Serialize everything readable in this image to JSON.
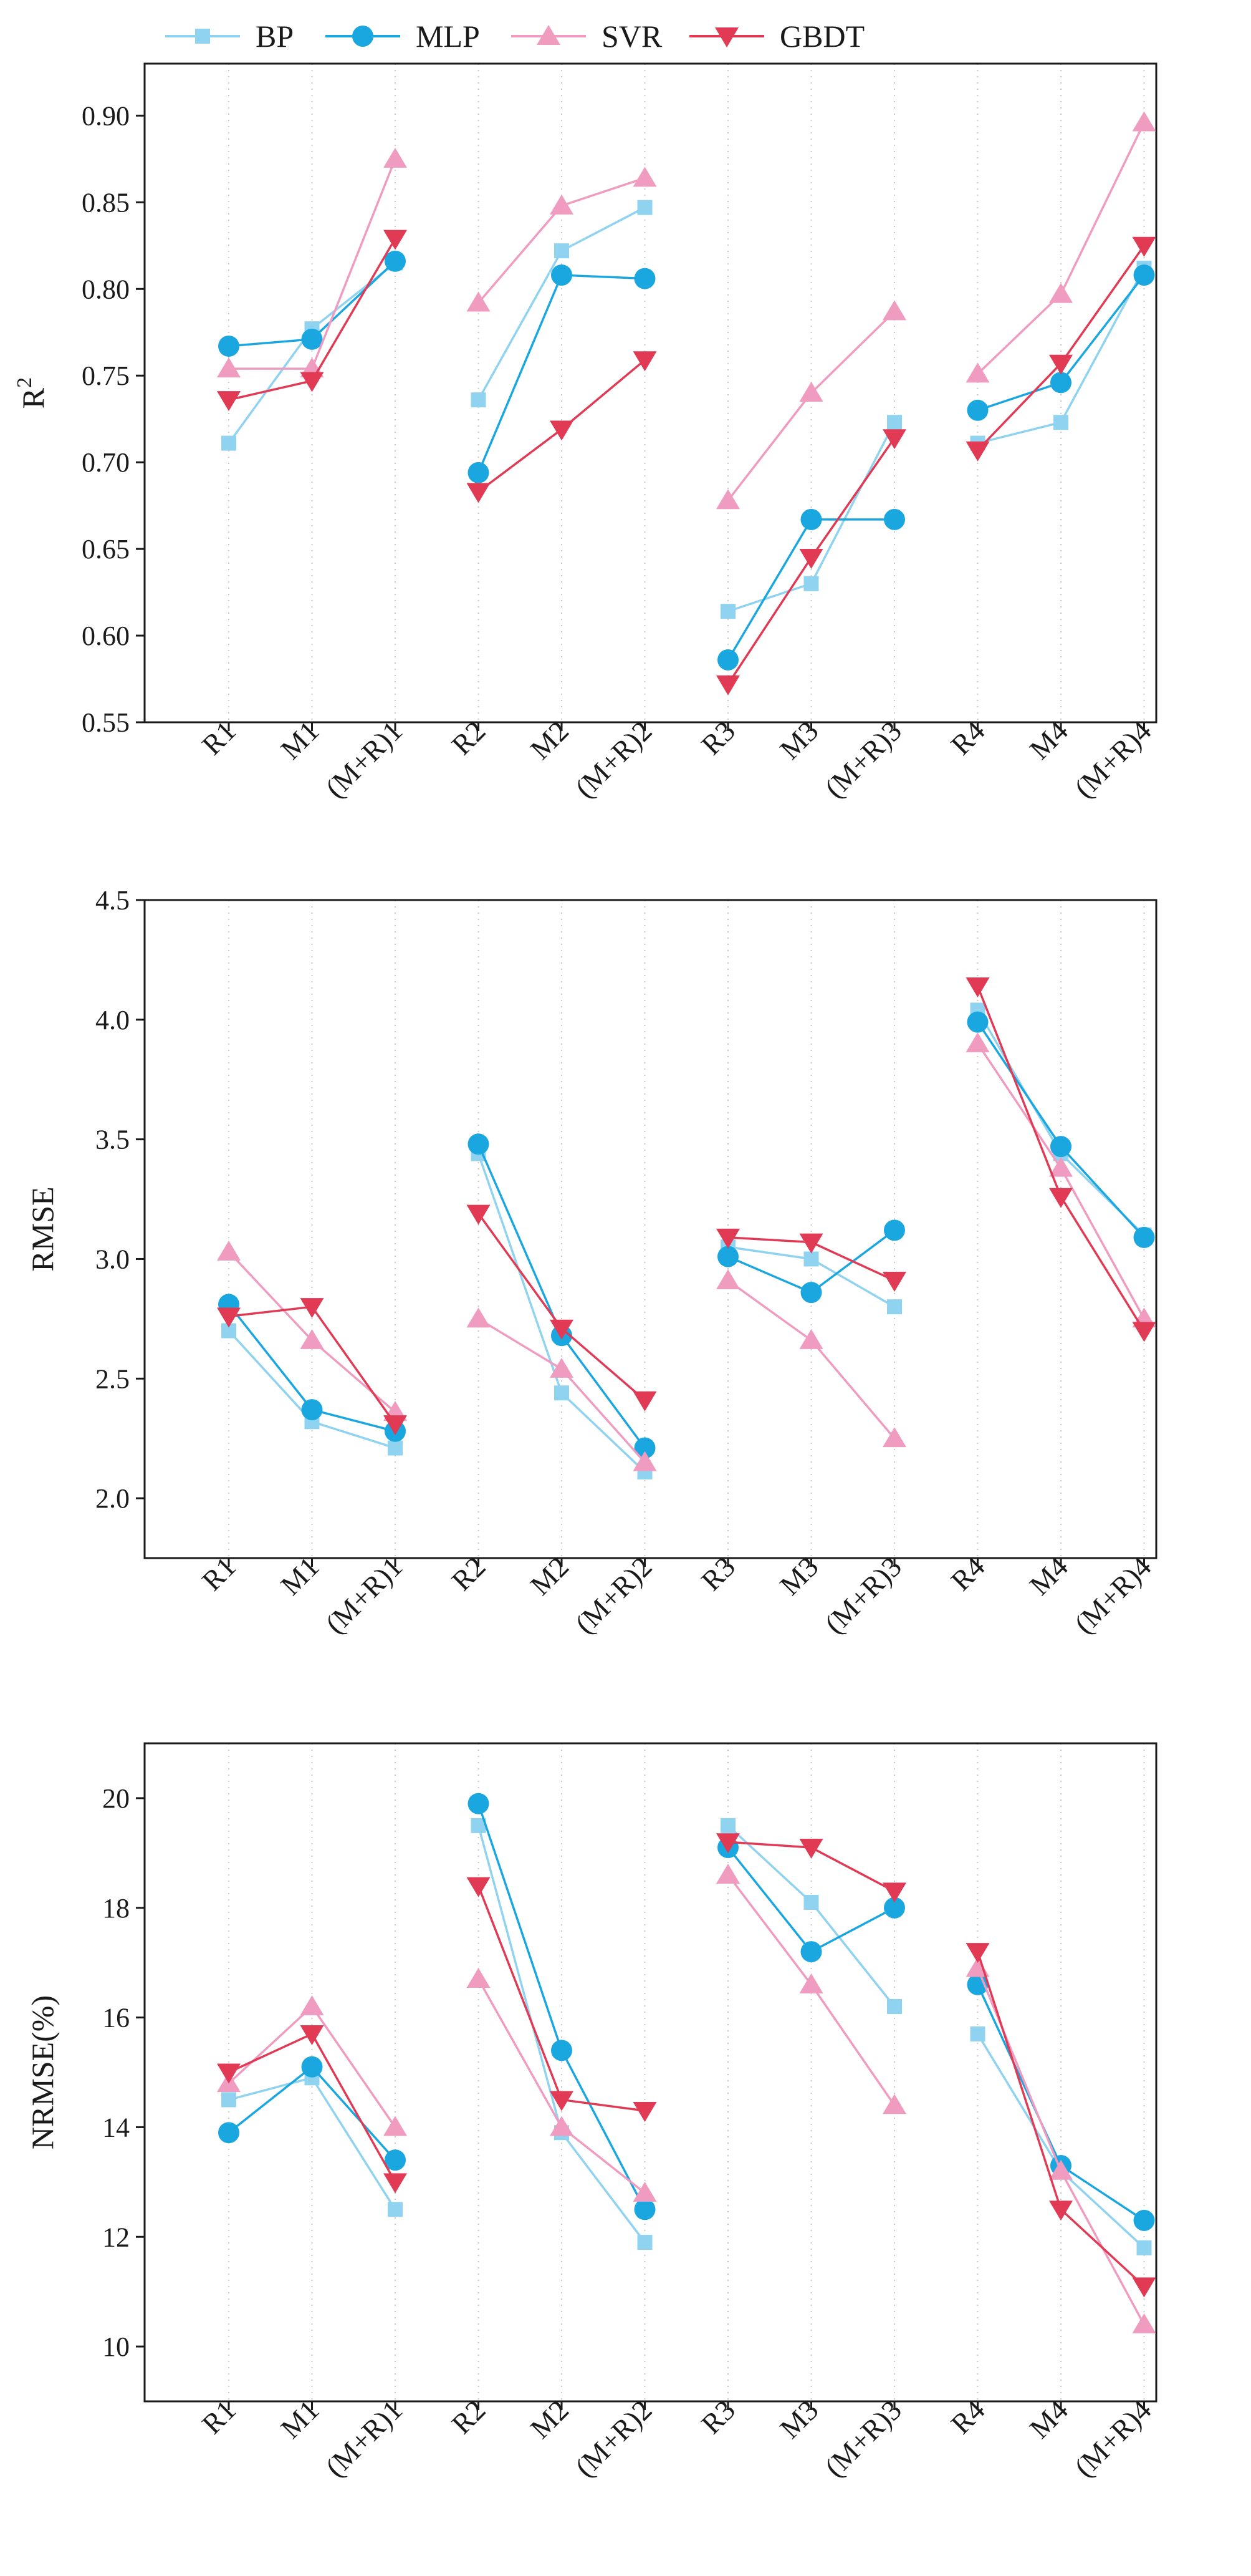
{
  "legend": [
    {
      "name": "BP",
      "color": "#8fd3f0",
      "marker": "square"
    },
    {
      "name": "MLP",
      "color": "#1aa7e0",
      "marker": "circle"
    },
    {
      "name": "SVR",
      "color": "#f09cc0",
      "marker": "triangle-up"
    },
    {
      "name": "GBDT",
      "color": "#e03a55",
      "marker": "triangle-down"
    }
  ],
  "chart_data": [
    {
      "type": "line",
      "ylabel": "R²",
      "ylim": [
        0.55,
        0.93
      ],
      "yticks": [
        0.55,
        0.6,
        0.65,
        0.7,
        0.75,
        0.8,
        0.85,
        0.9
      ],
      "ytick_labels": [
        "0.55",
        "0.60",
        "0.65",
        "0.70",
        "0.75",
        "0.80",
        "0.85",
        "0.90"
      ],
      "categories": [
        "R1",
        "M1",
        "(M+R)1",
        "R2",
        "M2",
        "(M+R)2",
        "R3",
        "M3",
        "(M+R)3",
        "R4",
        "M4",
        "(M+R)4"
      ],
      "groups": [
        [
          0,
          1,
          2
        ],
        [
          3,
          4,
          5
        ],
        [
          6,
          7,
          8
        ],
        [
          9,
          10,
          11
        ]
      ],
      "grid": "vertical-dotted",
      "series": [
        {
          "name": "BP",
          "values": [
            0.711,
            0.777,
            0.815,
            0.736,
            0.822,
            0.847,
            0.614,
            0.63,
            0.723,
            0.711,
            0.723,
            0.812
          ]
        },
        {
          "name": "MLP",
          "values": [
            0.767,
            0.771,
            0.816,
            0.694,
            0.808,
            0.806,
            0.586,
            0.667,
            0.667,
            0.73,
            0.746,
            0.808
          ]
        },
        {
          "name": "SVR",
          "values": [
            0.754,
            0.754,
            0.875,
            0.792,
            0.848,
            0.864,
            0.678,
            0.74,
            0.787,
            0.751,
            0.797,
            0.896
          ]
        },
        {
          "name": "GBDT",
          "values": [
            0.736,
            0.747,
            0.829,
            0.683,
            0.719,
            0.759,
            0.572,
            0.645,
            0.714,
            0.707,
            0.757,
            0.825
          ]
        }
      ]
    },
    {
      "type": "line",
      "ylabel": "RMSE",
      "ylim": [
        1.75,
        4.5
      ],
      "yticks": [
        2.0,
        2.5,
        3.0,
        3.5,
        4.0,
        4.5
      ],
      "ytick_labels": [
        "2.0",
        "2.5",
        "3.0",
        "3.5",
        "4.0",
        "4.5"
      ],
      "categories": [
        "R1",
        "M1",
        "(M+R)1",
        "R2",
        "M2",
        "(M+R)2",
        "R3",
        "M3",
        "(M+R)3",
        "R4",
        "M4",
        "(M+R)4"
      ],
      "groups": [
        [
          0,
          1,
          2
        ],
        [
          3,
          4,
          5
        ],
        [
          6,
          7,
          8
        ],
        [
          9,
          10,
          11
        ]
      ],
      "grid": "vertical-dotted",
      "series": [
        {
          "name": "BP",
          "values": [
            2.7,
            2.32,
            2.21,
            3.44,
            2.44,
            2.11,
            3.05,
            3.0,
            2.8,
            4.04,
            3.44,
            3.1
          ]
        },
        {
          "name": "MLP",
          "values": [
            2.81,
            2.37,
            2.28,
            3.48,
            2.68,
            2.21,
            3.01,
            2.86,
            3.12,
            3.99,
            3.47,
            3.09
          ]
        },
        {
          "name": "SVR",
          "values": [
            3.03,
            2.66,
            2.36,
            2.75,
            2.54,
            2.15,
            2.91,
            2.66,
            2.25,
            3.9,
            3.38,
            2.75
          ]
        },
        {
          "name": "GBDT",
          "values": [
            2.76,
            2.8,
            2.31,
            3.19,
            2.71,
            2.41,
            3.09,
            3.07,
            2.91,
            4.14,
            3.26,
            2.7
          ]
        }
      ]
    },
    {
      "type": "line",
      "ylabel": "NRMSE(%)",
      "ylim": [
        9.0,
        21.0
      ],
      "yticks": [
        10,
        12,
        14,
        16,
        18,
        20
      ],
      "ytick_labels": [
        "10",
        "12",
        "14",
        "16",
        "18",
        "20"
      ],
      "categories": [
        "R1",
        "M1",
        "(M+R)1",
        "R2",
        "M2",
        "(M+R)2",
        "R3",
        "M3",
        "(M+R)3",
        "R4",
        "M4",
        "(M+R)4"
      ],
      "groups": [
        [
          0,
          1,
          2
        ],
        [
          3,
          4,
          5
        ],
        [
          6,
          7,
          8
        ],
        [
          9,
          10,
          11
        ]
      ],
      "grid": "vertical-dotted",
      "series": [
        {
          "name": "BP",
          "values": [
            14.5,
            14.9,
            12.5,
            19.5,
            13.9,
            11.9,
            19.5,
            18.1,
            16.2,
            15.7,
            13.2,
            11.8
          ]
        },
        {
          "name": "MLP",
          "values": [
            13.9,
            15.1,
            13.4,
            19.9,
            15.4,
            12.5,
            19.1,
            17.2,
            18.0,
            16.6,
            13.3,
            12.3
          ]
        },
        {
          "name": "SVR",
          "values": [
            14.8,
            16.2,
            14.0,
            16.7,
            14.0,
            12.8,
            18.6,
            16.6,
            14.4,
            16.9,
            13.2,
            10.4
          ]
        },
        {
          "name": "GBDT",
          "values": [
            15.0,
            15.7,
            13.0,
            18.4,
            14.5,
            14.3,
            19.2,
            19.1,
            18.3,
            17.2,
            12.5,
            11.1
          ]
        }
      ]
    }
  ]
}
